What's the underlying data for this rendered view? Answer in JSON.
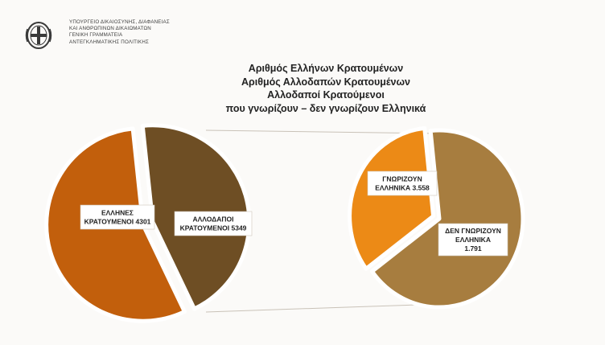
{
  "ministry": {
    "lines": [
      "ΥΠΟΥΡΓΕΙΟ ΔΙΚΑΙΟΣΥΝΗΣ, ΔΙΑΦΑΝΕΙΑΣ",
      "ΚΑΙ ΑΝΘΡΩΠΙΝΩΝ ΔΙΚΑΙΩΜΑΤΩΝ",
      "ΓΕΝΙΚΗ ΓΡΑΜΜΑΤΕΙΑ",
      "ΑΝΤΕΓΚΛΗΜΑΤΙΚΗΣ ΠΟΛΙΤΙΚΗΣ"
    ],
    "emblem_icon": "greek-coat-of-arms-icon"
  },
  "chart_data": {
    "type": "pie",
    "title": [
      "Αριθμός Ελλήνων Κρατουμένων",
      "Αριθμός Αλλοδαπών Κρατουμένων",
      "Αλλοδαποί Κρατούμενοι",
      "που γνωρίζουν – δεν γνωρίζουν Ελληνικά"
    ],
    "pies": [
      {
        "slices": [
          {
            "label_lines": [
              "ΕΛΛΗΝΕΣ",
              "ΚΡΑΤΟΥΜΕΝΟΙ 4301"
            ],
            "value": 4301,
            "color": "#6e4e24"
          },
          {
            "label_lines": [
              "ΑΛΛΟΔΑΠΟΙ",
              "ΚΡΑΤΟΥΜΕΝΟΙ  5349"
            ],
            "value": 5349,
            "color": "#c25f0c"
          }
        ]
      },
      {
        "slices": [
          {
            "label_lines": [
              "ΓΝΩΡΙΖΟΥΝ",
              "ΕΛΛΗΝΙΚΑ 3.558"
            ],
            "value": 3558,
            "color": "#a77d3f"
          },
          {
            "label_lines": [
              "ΔΕΝ ΓΝΩΡΙΖΟΥΝ",
              "ΕΛΛΗΝΙΚΑ",
              "1.791"
            ],
            "value": 1791,
            "color": "#ec8a16"
          }
        ]
      }
    ]
  }
}
